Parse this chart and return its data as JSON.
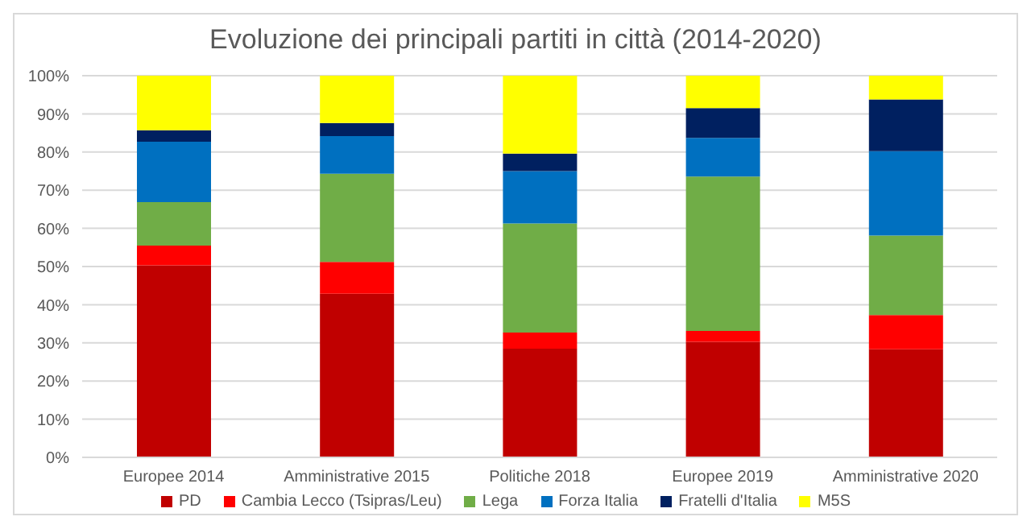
{
  "chart_data": {
    "type": "bar",
    "title": "Evoluzione dei principali partiti in città (2014-2020)",
    "stacked": true,
    "categories": [
      "Europee 2014",
      "Amministrative 2015",
      "Politiche 2018",
      "Europee 2019",
      "Amministrative 2020"
    ],
    "series": [
      {
        "name": "PD",
        "color": "#c00000",
        "values": [
          50.3,
          42.9,
          28.5,
          30.3,
          28.3
        ]
      },
      {
        "name": "Cambia Lecco (Tsipras/Leu)",
        "color": "#ff0000",
        "values": [
          5.2,
          8.3,
          4.2,
          2.8,
          9.0
        ]
      },
      {
        "name": "Lega",
        "color": "#70ad47",
        "values": [
          11.4,
          23.1,
          28.6,
          40.5,
          20.8
        ]
      },
      {
        "name": "Forza Italia",
        "color": "#0070c0",
        "values": [
          15.8,
          9.9,
          13.7,
          10.1,
          22.1
        ]
      },
      {
        "name": "Fratelli d'Italia",
        "color": "#002060",
        "values": [
          3.0,
          3.4,
          4.6,
          7.8,
          13.6
        ]
      },
      {
        "name": "M5S",
        "color": "#ffff00",
        "values": [
          14.3,
          12.4,
          20.4,
          8.5,
          6.2
        ]
      }
    ],
    "ylim": [
      0,
      100
    ],
    "yticks": [
      {
        "value": 0,
        "label": "0%"
      },
      {
        "value": 10,
        "label": "10%"
      },
      {
        "value": 20,
        "label": "20%"
      },
      {
        "value": 30,
        "label": "30%"
      },
      {
        "value": 40,
        "label": "40%"
      },
      {
        "value": 50,
        "label": "50%"
      },
      {
        "value": 60,
        "label": "60%"
      },
      {
        "value": 70,
        "label": "70%"
      },
      {
        "value": 80,
        "label": "80%"
      },
      {
        "value": 90,
        "label": "90%"
      },
      {
        "value": 100,
        "label": "100%"
      }
    ],
    "grid": "y",
    "legend": "bottom"
  }
}
